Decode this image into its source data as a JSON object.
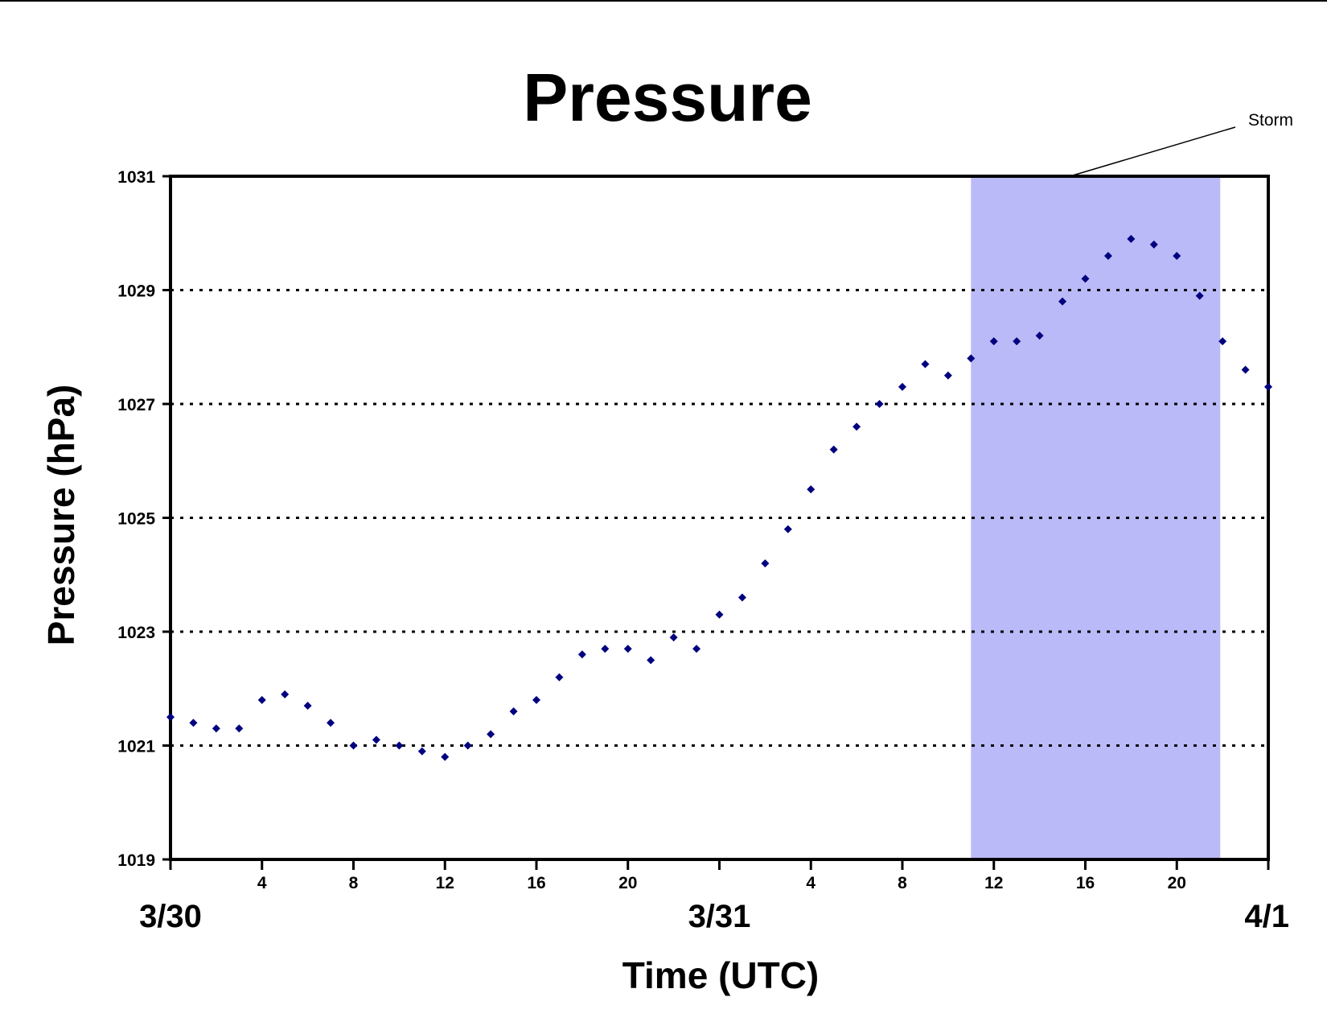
{
  "chart_data": {
    "type": "scatter",
    "title": "Pressure",
    "xlabel": "Time (UTC)",
    "ylabel": "Pressure (hPa)",
    "ylim": [
      1019,
      1031
    ],
    "yticks": [
      "1019",
      "1021",
      "1023",
      "1025",
      "1027",
      "1029",
      "1031"
    ],
    "xlim_hours": [
      0,
      48
    ],
    "xticks": [
      {
        "hour": 0,
        "label": ""
      },
      {
        "hour": 4,
        "label": "4"
      },
      {
        "hour": 8,
        "label": "8"
      },
      {
        "hour": 12,
        "label": "12"
      },
      {
        "hour": 16,
        "label": "16"
      },
      {
        "hour": 20,
        "label": "20"
      },
      {
        "hour": 24,
        "label": ""
      },
      {
        "hour": 28,
        "label": "4"
      },
      {
        "hour": 32,
        "label": "8"
      },
      {
        "hour": 36,
        "label": "12"
      },
      {
        "hour": 40,
        "label": "16"
      },
      {
        "hour": 44,
        "label": "20"
      },
      {
        "hour": 48,
        "label": ""
      }
    ],
    "date_labels": [
      {
        "hour": 0,
        "label": "3/30"
      },
      {
        "hour": 24,
        "label": "3/31"
      },
      {
        "hour": 48,
        "label": "4/1"
      }
    ],
    "grid": "horizontal dotted",
    "legend": "none",
    "marker_color": "#00007f",
    "series": [
      {
        "x": [
          0,
          1,
          2,
          3,
          4,
          5,
          6,
          7,
          8,
          9,
          10,
          11,
          12,
          13,
          14,
          15,
          16,
          17,
          18,
          19,
          20,
          21,
          22,
          23,
          24,
          25,
          26,
          27,
          28,
          29,
          30,
          31,
          32,
          33,
          34,
          35,
          36,
          37,
          38,
          39,
          40,
          41,
          42,
          43,
          44,
          45,
          46,
          47,
          48
        ],
        "values": [
          1021.5,
          1021.4,
          1021.3,
          1021.3,
          1021.8,
          1021.9,
          1021.7,
          1021.4,
          1021.0,
          1021.1,
          1021.0,
          1020.9,
          1020.8,
          1021.0,
          1021.2,
          1021.6,
          1021.8,
          1022.2,
          1022.6,
          1022.7,
          1022.7,
          1022.5,
          1022.9,
          1022.7,
          1023.3,
          1023.6,
          1024.2,
          1024.8,
          1025.5,
          1026.2,
          1026.6,
          1027.0,
          1027.3,
          1027.7,
          1027.5,
          1027.8,
          1028.1,
          1028.1,
          1028.2,
          1028.8,
          1029.2,
          1029.6,
          1029.9,
          1029.8,
          1029.6,
          1028.9,
          1028.1,
          1027.6,
          1027.3
        ]
      }
    ],
    "shaded_region": {
      "label": "Storm",
      "x_start": 35,
      "x_end": 45.9,
      "color": "#babaf8"
    }
  }
}
